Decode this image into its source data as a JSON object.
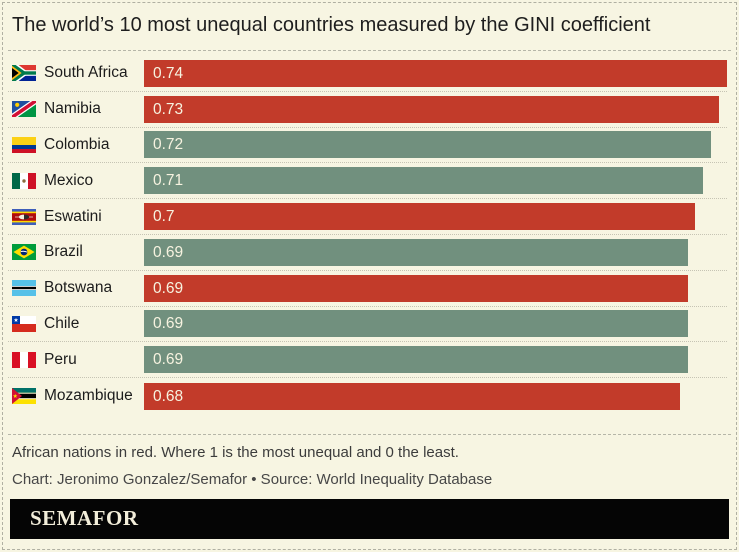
{
  "title": "The world’s 10 most unequal countries measured by the GINI coefficient",
  "chart_data": {
    "type": "bar",
    "orientation": "horizontal",
    "title": "The world’s 10 most unequal countries measured by the GINI coefficient",
    "xlabel": "",
    "xlim": [
      0,
      0.74
    ],
    "grid": false,
    "legend_note": "African nations in red",
    "categories": [
      "South Africa",
      "Namibia",
      "Colombia",
      "Mexico",
      "Eswatini",
      "Brazil",
      "Botswana",
      "Chile",
      "Peru",
      "Mozambique"
    ],
    "values": [
      0.74,
      0.73,
      0.72,
      0.71,
      0.7,
      0.69,
      0.69,
      0.69,
      0.69,
      0.68
    ],
    "value_labels": [
      "0.74",
      "0.73",
      "0.72",
      "0.71",
      "0.7",
      "0.69",
      "0.69",
      "0.69",
      "0.69",
      "0.68"
    ],
    "rows": [
      {
        "country": "South Africa",
        "value": 0.74,
        "label": "0.74",
        "region": "african",
        "flag": "za"
      },
      {
        "country": "Namibia",
        "value": 0.73,
        "label": "0.73",
        "region": "african",
        "flag": "na"
      },
      {
        "country": "Colombia",
        "value": 0.72,
        "label": "0.72",
        "region": "other",
        "flag": "co"
      },
      {
        "country": "Mexico",
        "value": 0.71,
        "label": "0.71",
        "region": "other",
        "flag": "mx"
      },
      {
        "country": "Eswatini",
        "value": 0.7,
        "label": "0.7",
        "region": "african",
        "flag": "sz"
      },
      {
        "country": "Brazil",
        "value": 0.69,
        "label": "0.69",
        "region": "other",
        "flag": "br"
      },
      {
        "country": "Botswana",
        "value": 0.69,
        "label": "0.69",
        "region": "african",
        "flag": "bw"
      },
      {
        "country": "Chile",
        "value": 0.69,
        "label": "0.69",
        "region": "other",
        "flag": "cl"
      },
      {
        "country": "Peru",
        "value": 0.69,
        "label": "0.69",
        "region": "other",
        "flag": "pe"
      },
      {
        "country": "Mozambique",
        "value": 0.68,
        "label": "0.68",
        "region": "african",
        "flag": "mz"
      }
    ],
    "colors": {
      "african": "#c23b2a",
      "other": "#71907e"
    }
  },
  "footer": {
    "note": "African nations in red. Where 1 is the most unequal and 0 the least.",
    "credit": "Chart: Jeronimo Gonzalez/Semafor • Source: World Inequality Database"
  },
  "logo": {
    "text": "SEMAFOR"
  },
  "theme": {
    "background": "#f7f5e2",
    "bar_red": "#c23b2a",
    "bar_teal": "#71907e",
    "bar_value_text": "#f7f3e0",
    "logo_bg": "#050505",
    "logo_text": "#f3eeda"
  }
}
